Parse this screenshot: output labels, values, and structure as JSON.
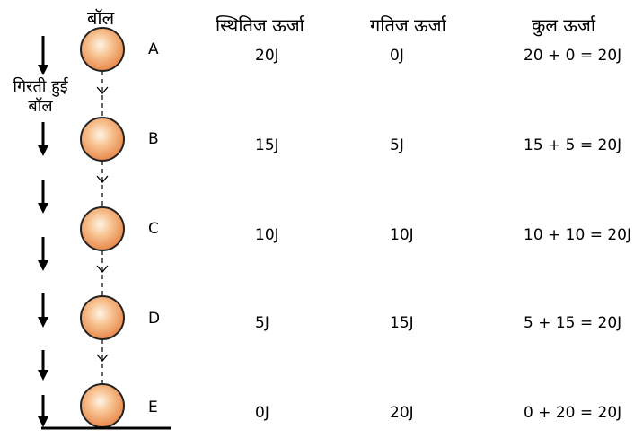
{
  "headers": {
    "ball": "बॉल",
    "potential": "स्थितिज ऊर्जा",
    "kinetic": "गतिज ऊर्जा",
    "total": "कुल ऊर्जा"
  },
  "falling_label": [
    "गिरती हुई",
    "बॉल"
  ],
  "rows": [
    {
      "label": "A",
      "potential": "20J",
      "kinetic": "0J",
      "total": "20 + 0 = 20J"
    },
    {
      "label": "B",
      "potential": "15J",
      "kinetic": "5J",
      "total": "15 + 5 = 20J"
    },
    {
      "label": "C",
      "potential": "10J",
      "kinetic": "10J",
      "total": "10 + 10 = 20J"
    },
    {
      "label": "D",
      "potential": "5J",
      "kinetic": "15J",
      "total": "5 + 15 = 20J"
    },
    {
      "label": "E",
      "potential": "0J",
      "kinetic": "20J",
      "total": "0 + 20 = 20J"
    }
  ],
  "colors": {
    "ball_fill": "#f0a060",
    "ball_highlight": "#fde8d2",
    "ball_stroke": "#222222",
    "ground": "#000000"
  }
}
